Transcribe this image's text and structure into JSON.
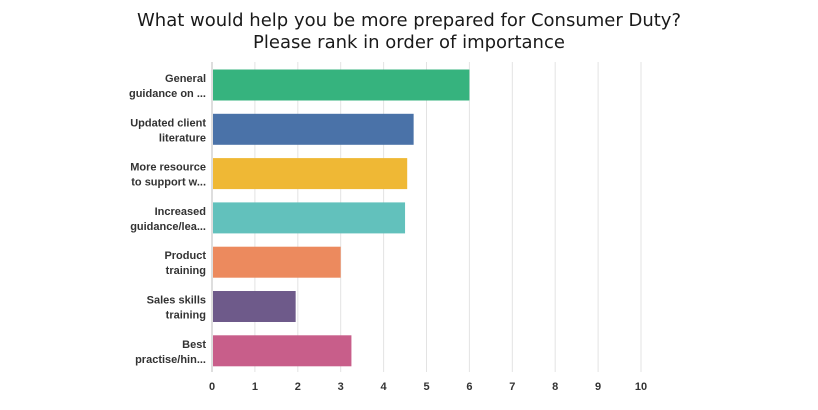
{
  "chart_data": {
    "type": "bar",
    "orientation": "horizontal",
    "title": "What would help you be more prepared for Consumer Duty? Please rank in order of importance",
    "title_lines": [
      "What would help you be more prepared for Consumer Duty?",
      "Please rank in order of importance"
    ],
    "categories": [
      "General guidance on ...",
      "Updated client literature",
      "More resource to support w...",
      "Increased guidance/lea...",
      "Product training",
      "Sales skills training",
      "Best practise/hin..."
    ],
    "category_label_lines": [
      [
        "General",
        "guidance on ..."
      ],
      [
        "Updated client",
        "literature"
      ],
      [
        "More resource",
        "to support w..."
      ],
      [
        "Increased",
        "guidance/lea..."
      ],
      [
        "Product",
        "training"
      ],
      [
        "Sales skills",
        "training"
      ],
      [
        "Best",
        "practise/hin..."
      ]
    ],
    "values": [
      6.0,
      4.7,
      4.55,
      4.5,
      3.0,
      1.95,
      3.25
    ],
    "colors": [
      "#36b37e",
      "#4a72a8",
      "#efb835",
      "#62c1bc",
      "#ec8a5e",
      "#6e5a8a",
      "#c85e8a"
    ],
    "xlim": [
      0,
      10
    ],
    "xticks": [
      0,
      1,
      2,
      3,
      4,
      5,
      6,
      7,
      8,
      9,
      10
    ],
    "xlabel": "",
    "ylabel": "",
    "grid": true
  }
}
